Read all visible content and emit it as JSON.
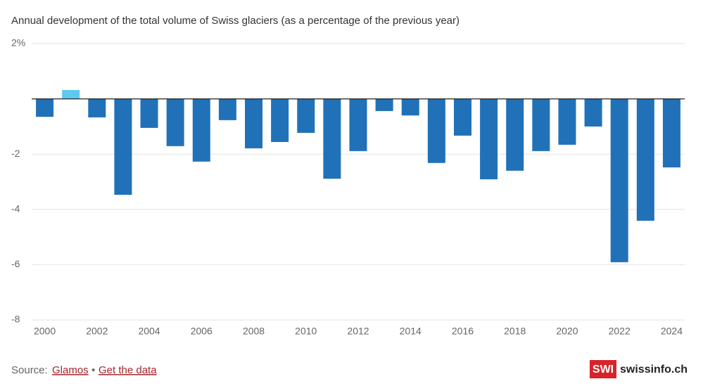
{
  "chart_data": {
    "type": "bar",
    "subtitle": "Annual development of the total volume of Swiss glaciers (as a percentage of the previous year)",
    "categories": [
      "2000",
      null,
      "2002",
      null,
      "2004",
      null,
      "2006",
      null,
      "2008",
      null,
      "2010",
      null,
      "2012",
      null,
      "2014",
      null,
      "2016",
      null,
      "2018",
      null,
      "2020",
      null,
      "2022",
      null,
      "2024"
    ],
    "values": [
      -0.65,
      0.32,
      -0.67,
      -3.47,
      -1.05,
      -1.71,
      -2.27,
      -0.77,
      -1.79,
      -1.56,
      -1.23,
      -2.89,
      -1.89,
      -0.44,
      -0.6,
      -2.32,
      -1.33,
      -2.91,
      -2.6,
      -1.89,
      -1.66,
      -1.0,
      -5.91,
      -4.41,
      -2.48
    ],
    "colors": [
      "#2171b8",
      "#5ec8ef",
      "#2171b8",
      "#2171b8",
      "#2171b8",
      "#2171b8",
      "#2171b8",
      "#2171b8",
      "#2171b8",
      "#2171b8",
      "#2171b8",
      "#2171b8",
      "#2171b8",
      "#2171b8",
      "#2171b8",
      "#2171b8",
      "#2171b8",
      "#2171b8",
      "#2171b8",
      "#2171b8",
      "#2171b8",
      "#2171b8",
      "#2171b8",
      "#2171b8",
      "#2171b8"
    ],
    "ylim": [
      -8,
      2
    ],
    "yticks": [
      {
        "value": 2,
        "label": "2%"
      },
      -2,
      -4,
      -6,
      -8
    ],
    "grid": true
  },
  "footer": {
    "source_label": "Source:",
    "source_link": "Glamos",
    "separator": "•",
    "data_link": "Get the data",
    "logo": "SWI",
    "brand": "swissinfo.ch"
  }
}
